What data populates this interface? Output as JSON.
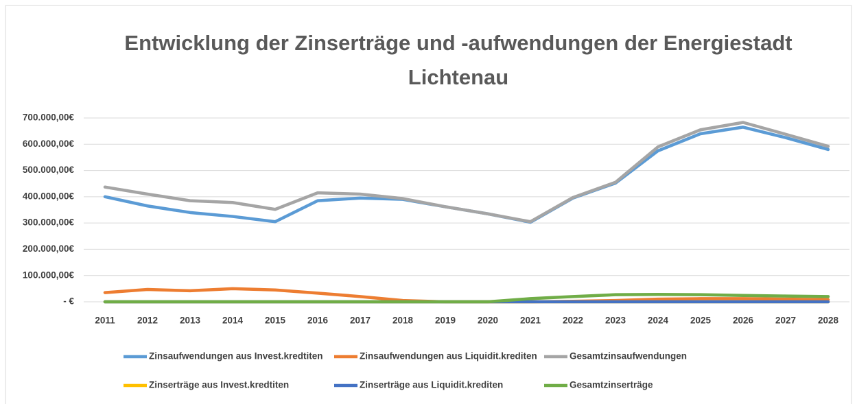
{
  "chart_data": {
    "type": "line",
    "title": "Entwicklung der Zinserträge und -aufwendungen der Energiestadt Lichtenau",
    "categories": [
      "2011",
      "2012",
      "2013",
      "2014",
      "2015",
      "2016",
      "2017",
      "2018",
      "2019",
      "2020",
      "2021",
      "2022",
      "2023",
      "2024",
      "2025",
      "2026",
      "2027",
      "2028"
    ],
    "series": [
      {
        "name": "Zinsaufwendungen aus Invest.kredtiten",
        "color": "#5b9bd5",
        "values": [
          400000,
          365000,
          340000,
          325000,
          305000,
          385000,
          395000,
          390000,
          362000,
          335000,
          303000,
          395000,
          452000,
          575000,
          640000,
          665000,
          625000,
          580000
        ]
      },
      {
        "name": "Zinsaufwendungen aus Liquidit.krediten",
        "color": "#ed7d31",
        "values": [
          35000,
          47000,
          42000,
          50000,
          45000,
          33000,
          20000,
          5000,
          0,
          0,
          0,
          2000,
          5000,
          10000,
          12000,
          12000,
          10000,
          8000
        ]
      },
      {
        "name": "Gesamtzinsaufwendungen",
        "color": "#a5a5a5",
        "values": [
          437000,
          410000,
          385000,
          378000,
          352000,
          415000,
          410000,
          393000,
          362000,
          335000,
          305000,
          397000,
          455000,
          590000,
          655000,
          683000,
          638000,
          592000
        ]
      },
      {
        "name": "Zinserträge aus Invest.kredtiten",
        "color": "#ffc000",
        "values": [
          0,
          0,
          0,
          0,
          0,
          0,
          0,
          0,
          0,
          0,
          0,
          0,
          0,
          0,
          0,
          0,
          0,
          0
        ]
      },
      {
        "name": "Zinserträge aus Liquidit.krediten",
        "color": "#4472c4",
        "values": [
          0,
          0,
          0,
          0,
          0,
          0,
          0,
          0,
          0,
          0,
          0,
          0,
          0,
          0,
          0,
          0,
          0,
          0
        ]
      },
      {
        "name": "Gesamtzinserträge",
        "color": "#70ad47",
        "values": [
          0,
          0,
          0,
          0,
          0,
          0,
          0,
          0,
          0,
          0,
          12000,
          20000,
          27000,
          28000,
          27000,
          24000,
          22000,
          20000
        ]
      }
    ],
    "ylim": [
      0,
      700000
    ],
    "yticks": [
      {
        "value": 0,
        "label": "-   €"
      },
      {
        "value": 100000,
        "label": "100.000,00€"
      },
      {
        "value": 200000,
        "label": "200.000,00€"
      },
      {
        "value": 300000,
        "label": "300.000,00€"
      },
      {
        "value": 400000,
        "label": "400.000,00€"
      },
      {
        "value": 500000,
        "label": "500.000,00€"
      },
      {
        "value": 600000,
        "label": "600.000,00€"
      },
      {
        "value": 700000,
        "label": "700.000,00€"
      }
    ],
    "grid": true,
    "legend": "bottom"
  }
}
